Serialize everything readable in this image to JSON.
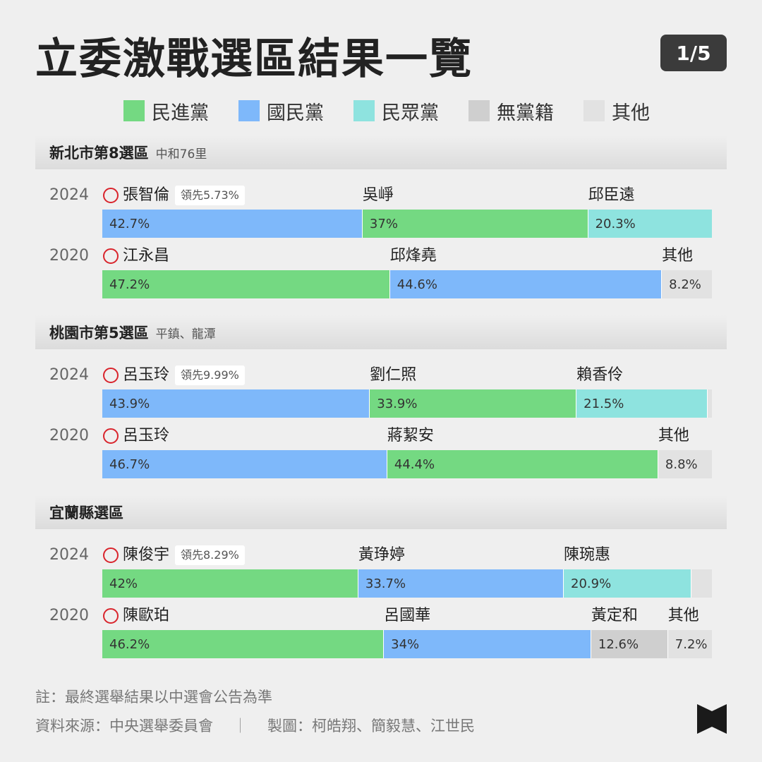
{
  "title": "立委激戰選區結果一覽",
  "page": "1/5",
  "colors": {
    "dpp": "#74d982",
    "kmt": "#7eb8fa",
    "tpp": "#8ee3df",
    "ind": "#cfcfcf",
    "other": "#e2e2e2"
  },
  "legend": [
    {
      "key": "dpp",
      "label": "民進黨"
    },
    {
      "key": "kmt",
      "label": "國民黨"
    },
    {
      "key": "tpp",
      "label": "民眾黨"
    },
    {
      "key": "ind",
      "label": "無黨籍"
    },
    {
      "key": "other",
      "label": "其他"
    }
  ],
  "chart_data": {
    "type": "bar",
    "stacked": true,
    "orientation": "horizontal",
    "districts": [
      {
        "name": "新北市第8選區",
        "sub": "中和76里",
        "rows": [
          {
            "year": "2024",
            "winner": "張智倫",
            "lead": "領先5.73%",
            "segments": [
              {
                "party": "kmt",
                "candidate": "張智倫",
                "value": 42.7,
                "label": "42.7%"
              },
              {
                "party": "dpp",
                "candidate": "吳崢",
                "value": 37,
                "label": "37%"
              },
              {
                "party": "tpp",
                "candidate": "邱臣遠",
                "value": 20.3,
                "label": "20.3%"
              }
            ]
          },
          {
            "year": "2020",
            "winner": "江永昌",
            "lead": "",
            "segments": [
              {
                "party": "dpp",
                "candidate": "江永昌",
                "value": 47.2,
                "label": "47.2%"
              },
              {
                "party": "kmt",
                "candidate": "邱烽堯",
                "value": 44.6,
                "label": "44.6%"
              },
              {
                "party": "other",
                "candidate": "其他",
                "value": 8.2,
                "label": "8.2%"
              }
            ]
          }
        ]
      },
      {
        "name": "桃園市第5選區",
        "sub": "平鎮、龍潭",
        "rows": [
          {
            "year": "2024",
            "winner": "呂玉玲",
            "lead": "領先9.99%",
            "segments": [
              {
                "party": "kmt",
                "candidate": "呂玉玲",
                "value": 43.9,
                "label": "43.9%"
              },
              {
                "party": "dpp",
                "candidate": "劉仁照",
                "value": 33.9,
                "label": "33.9%"
              },
              {
                "party": "tpp",
                "candidate": "賴香伶",
                "value": 21.5,
                "label": "21.5%"
              },
              {
                "party": "other",
                "candidate": "",
                "value": 0.7,
                "label": ""
              }
            ]
          },
          {
            "year": "2020",
            "winner": "呂玉玲",
            "lead": "",
            "segments": [
              {
                "party": "kmt",
                "candidate": "呂玉玲",
                "value": 46.7,
                "label": "46.7%"
              },
              {
                "party": "dpp",
                "candidate": "蔣絜安",
                "value": 44.4,
                "label": "44.4%"
              },
              {
                "party": "other",
                "candidate": "其他",
                "value": 8.8,
                "label": "8.8%"
              }
            ]
          }
        ]
      },
      {
        "name": "宜蘭縣選區",
        "sub": "",
        "rows": [
          {
            "year": "2024",
            "winner": "陳俊宇",
            "lead": "領先8.29%",
            "segments": [
              {
                "party": "dpp",
                "candidate": "陳俊宇",
                "value": 42,
                "label": "42%"
              },
              {
                "party": "kmt",
                "candidate": "黃琤婷",
                "value": 33.7,
                "label": "33.7%"
              },
              {
                "party": "tpp",
                "candidate": "陳琬惠",
                "value": 20.9,
                "label": "20.9%"
              },
              {
                "party": "other",
                "candidate": "",
                "value": 3.4,
                "label": ""
              }
            ]
          },
          {
            "year": "2020",
            "winner": "陳歐珀",
            "lead": "",
            "segments": [
              {
                "party": "dpp",
                "candidate": "陳歐珀",
                "value": 46.2,
                "label": "46.2%"
              },
              {
                "party": "kmt",
                "candidate": "呂國華",
                "value": 34,
                "label": "34%"
              },
              {
                "party": "ind",
                "candidate": "黃定和",
                "value": 12.6,
                "label": "12.6%"
              },
              {
                "party": "other",
                "candidate": "其他",
                "value": 7.2,
                "label": "7.2%"
              }
            ]
          }
        ]
      }
    ]
  },
  "footer": {
    "note": "註：最終選舉結果以中選會公告為準",
    "source": "資料來源：中央選舉委員會",
    "separator": "｜",
    "credits": "製圖：柯皓翔、簡毅慧、江世民"
  }
}
